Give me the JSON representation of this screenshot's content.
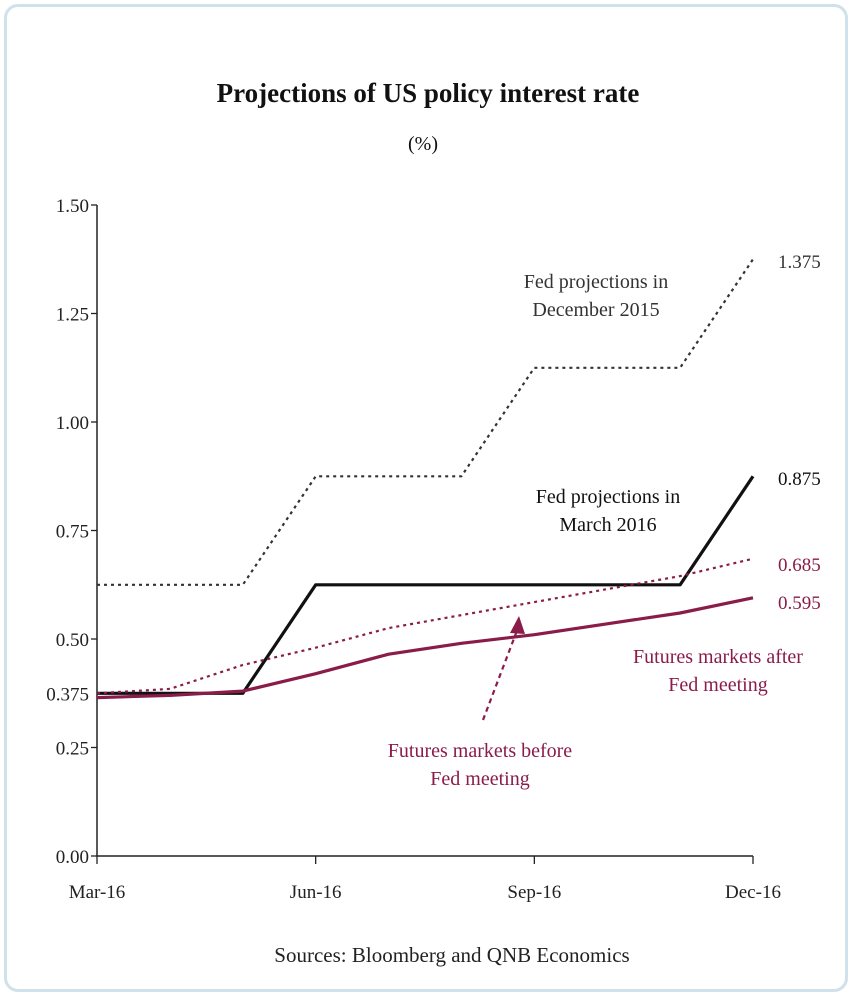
{
  "chart_data": {
    "type": "line",
    "title": "Projections of US policy interest rate",
    "subtitle": "(%)",
    "source": "Sources: Bloomberg and QNB Economics",
    "ylim": [
      0,
      1.5
    ],
    "yticks": [
      "0.00",
      "0.25",
      "0.50",
      "0.75",
      "1.00",
      "1.25",
      "1.50"
    ],
    "extra_ytick_label": "0.375",
    "extra_ytick_value": 0.375,
    "xticks": [
      "Mar-16",
      "Jun-16",
      "Sep-16",
      "Dec-16"
    ],
    "x_range": [
      0,
      9
    ],
    "series": [
      {
        "name": "Fed projections in December 2015",
        "label_lines": [
          "Fed projections in",
          "December 2015"
        ],
        "style": "dotted",
        "color": "#333333",
        "x": [
          0,
          2,
          3,
          5,
          6,
          8,
          9
        ],
        "y": [
          0.625,
          0.625,
          0.875,
          0.875,
          1.125,
          1.125,
          1.375
        ],
        "end_label": "1.375"
      },
      {
        "name": "Fed projections in March 2016",
        "label_lines": [
          "Fed projections in",
          "March 2016"
        ],
        "style": "solid",
        "color": "#111111",
        "x": [
          0,
          2,
          3,
          5,
          6,
          8,
          9
        ],
        "y": [
          0.375,
          0.375,
          0.625,
          0.625,
          0.625,
          0.625,
          0.875
        ],
        "end_label": "0.875"
      },
      {
        "name": "Futures markets before Fed meeting",
        "label_lines": [
          "Futures markets before",
          "Fed meeting"
        ],
        "style": "dotted",
        "color": "#8a1c4a",
        "x": [
          0,
          1,
          2,
          3,
          4,
          5,
          6,
          7,
          8,
          9
        ],
        "y": [
          0.375,
          0.385,
          0.44,
          0.48,
          0.525,
          0.555,
          0.585,
          0.615,
          0.645,
          0.685
        ],
        "end_label": "0.685"
      },
      {
        "name": "Futures markets after Fed meeting",
        "label_lines": [
          "Futures markets after",
          "Fed meeting"
        ],
        "style": "solid",
        "color": "#8a1c4a",
        "x": [
          0,
          1,
          2,
          3,
          4,
          5,
          6,
          7,
          8,
          9
        ],
        "y": [
          0.365,
          0.37,
          0.38,
          0.42,
          0.465,
          0.49,
          0.51,
          0.535,
          0.56,
          0.595
        ],
        "end_label": "0.595"
      }
    ]
  }
}
